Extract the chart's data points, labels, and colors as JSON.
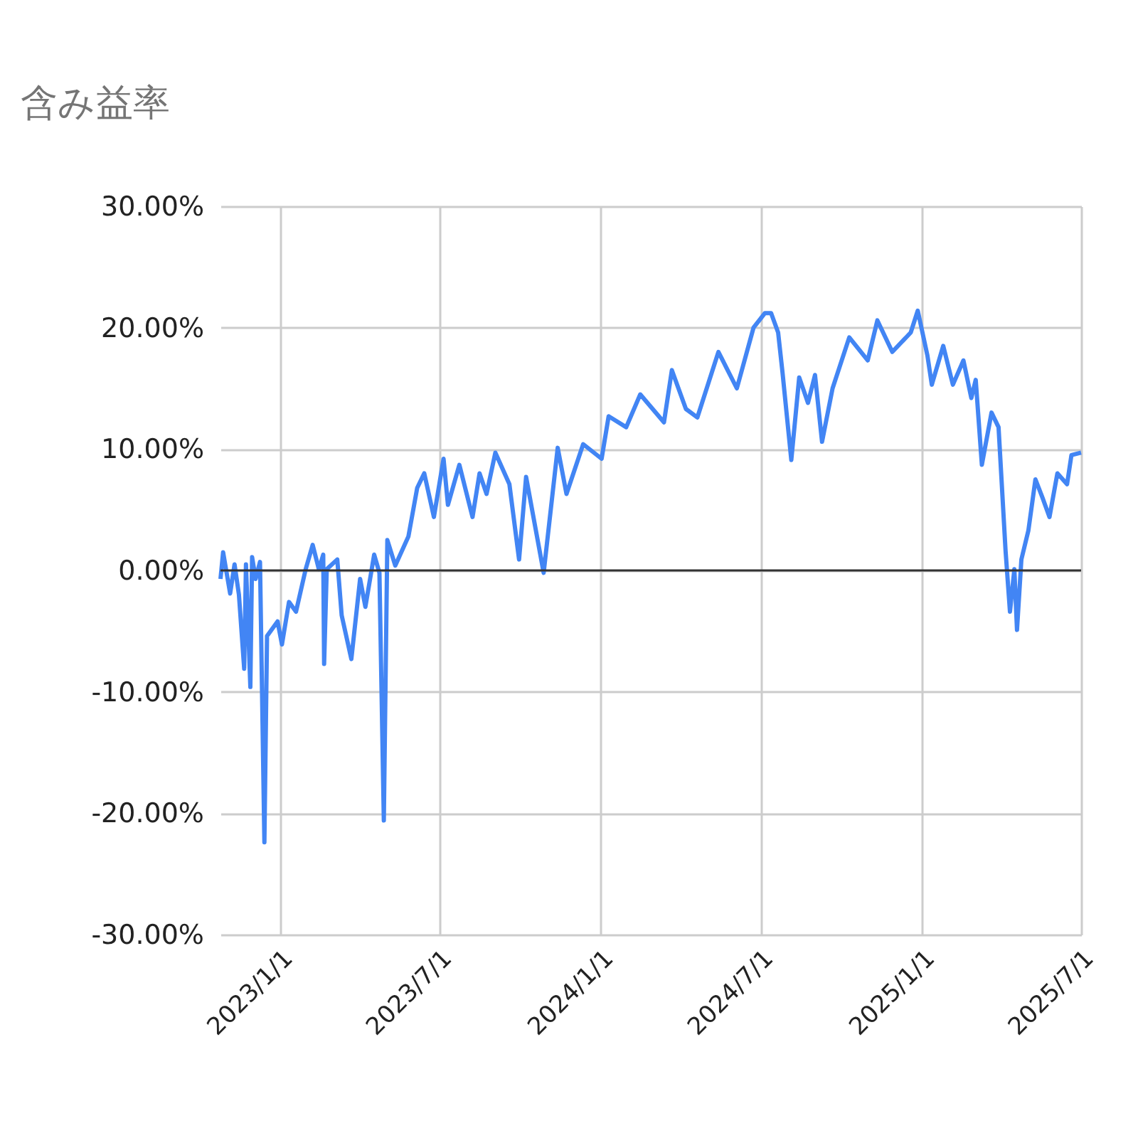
{
  "chart_data": {
    "type": "line",
    "title": "含み益率",
    "x": [
      "2022-10-25",
      "2022-10-28",
      "2022-11-05",
      "2022-11-10",
      "2022-11-15",
      "2022-11-21",
      "2022-11-23",
      "2022-11-28",
      "2022-11-30",
      "2022-12-04",
      "2022-12-09",
      "2022-12-14",
      "2022-12-17",
      "2022-12-29",
      "2023-01-03",
      "2023-01-11",
      "2023-01-19",
      "2023-01-30",
      "2023-02-07",
      "2023-02-14",
      "2023-02-19",
      "2023-02-20",
      "2023-02-23",
      "2023-03-07",
      "2023-03-12",
      "2023-03-23",
      "2023-04-02",
      "2023-04-08",
      "2023-04-18",
      "2023-04-24",
      "2023-04-29",
      "2023-05-03",
      "2023-05-12",
      "2023-05-27",
      "2023-06-06",
      "2023-06-14",
      "2023-06-25",
      "2023-07-06",
      "2023-07-11",
      "2023-07-24",
      "2023-08-08",
      "2023-08-16",
      "2023-08-24",
      "2023-09-03",
      "2023-09-19",
      "2023-09-30",
      "2023-10-08",
      "2023-10-28",
      "2023-11-13",
      "2023-11-23",
      "2023-12-12",
      "2024-01-02",
      "2024-01-10",
      "2024-01-30",
      "2024-02-15",
      "2024-03-13",
      "2024-03-22",
      "2024-04-07",
      "2024-04-20",
      "2024-05-14",
      "2024-06-04",
      "2024-06-23",
      "2024-07-06",
      "2024-07-13",
      "2024-07-21",
      "2024-07-26",
      "2024-08-05",
      "2024-08-14",
      "2024-08-24",
      "2024-09-01",
      "2024-09-09",
      "2024-09-21",
      "2024-10-10",
      "2024-10-31",
      "2024-11-11",
      "2024-11-28",
      "2024-12-19",
      "2024-12-27",
      "2025-01-07",
      "2025-01-12",
      "2025-01-25",
      "2025-02-05",
      "2025-02-17",
      "2025-02-26",
      "2025-03-03",
      "2025-03-10",
      "2025-03-21",
      "2025-03-29",
      "2025-04-06",
      "2025-04-11",
      "2025-04-16",
      "2025-04-19",
      "2025-04-24",
      "2025-05-02",
      "2025-05-10",
      "2025-05-18",
      "2025-05-26",
      "2025-06-04",
      "2025-06-15",
      "2025-06-20",
      "2025-07-01"
    ],
    "series": [
      {
        "color": "#4285f4",
        "values": [
          -0.7,
          1.5,
          -1.9,
          0.5,
          -2.0,
          -8.1,
          0.5,
          -9.6,
          1.1,
          -0.7,
          0.7,
          -22.4,
          -5.4,
          -4.2,
          -6.1,
          -2.6,
          -3.4,
          0.1,
          2.1,
          0.1,
          1.3,
          -7.7,
          0.1,
          0.9,
          -3.7,
          -7.3,
          -0.7,
          -3.0,
          1.3,
          -0.2,
          -20.6,
          2.5,
          0.4,
          2.8,
          6.8,
          8.0,
          4.4,
          9.2,
          5.4,
          8.7,
          4.4,
          8.0,
          6.3,
          9.7,
          7.1,
          0.9,
          7.7,
          -0.2,
          10.1,
          6.3,
          10.4,
          9.2,
          12.7,
          11.8,
          14.5,
          12.2,
          16.5,
          13.3,
          12.6,
          18.0,
          15.0,
          20.0,
          21.2,
          21.2,
          19.6,
          16.3,
          9.1,
          15.9,
          13.8,
          16.1,
          10.6,
          15.0,
          19.2,
          17.3,
          20.6,
          18.0,
          19.6,
          21.4,
          17.7,
          15.3,
          18.5,
          15.3,
          17.3,
          14.2,
          15.7,
          8.7,
          13.0,
          11.8,
          1.6,
          -3.4,
          0.1,
          -4.9,
          0.9,
          3.3,
          7.5,
          6.0,
          4.4,
          8.0,
          7.1,
          9.5,
          9.7
        ]
      }
    ],
    "xlim": [
      "2022-10-25",
      "2025-07-01"
    ],
    "xticks": [
      {
        "value": "2023-01-01",
        "label": "2023/1/1"
      },
      {
        "value": "2023-07-01",
        "label": "2023/7/1"
      },
      {
        "value": "2024-01-01",
        "label": "2024/1/1"
      },
      {
        "value": "2024-07-01",
        "label": "2024/7/1"
      },
      {
        "value": "2025-01-01",
        "label": "2025/1/1"
      },
      {
        "value": "2025-07-01",
        "label": "2025/7/1"
      }
    ],
    "ylim": [
      -30,
      30
    ],
    "yticks": [
      {
        "value": -30,
        "label": "-30.00%"
      },
      {
        "value": -20,
        "label": "-20.00%"
      },
      {
        "value": -10,
        "label": "-10.00%"
      },
      {
        "value": 0,
        "label": "0.00%"
      },
      {
        "value": 10,
        "label": "10.00%"
      },
      {
        "value": 20,
        "label": "20.00%"
      },
      {
        "value": 30,
        "label": "30.00%"
      }
    ],
    "grid": true,
    "ref_lines": [
      {
        "axis": "y",
        "value": 0,
        "color": "#333333"
      }
    ]
  }
}
